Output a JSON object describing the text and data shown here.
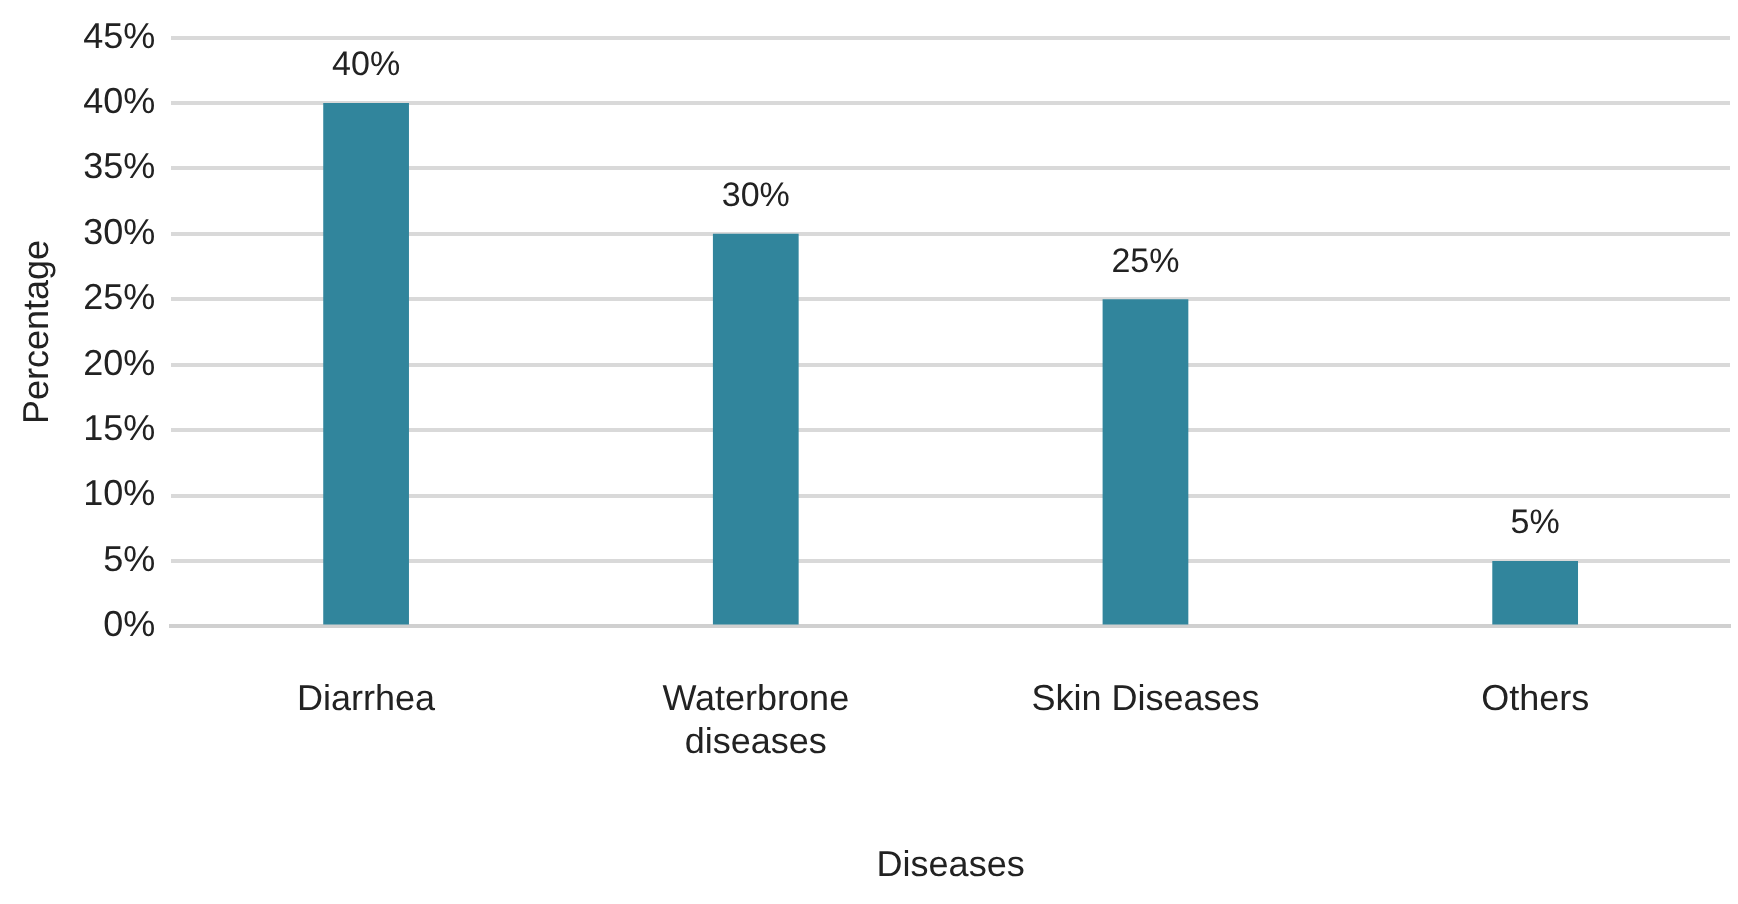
{
  "chart_data": {
    "type": "bar",
    "xlabel": "Diseases",
    "ylabel": "Percentage",
    "categories": [
      "Diarrhea",
      "Waterbrone diseases",
      "Skin Diseases",
      "Others"
    ],
    "values": [
      40,
      30,
      25,
      5
    ],
    "color": "#31859c",
    "value_labels": [
      "40%",
      "30%",
      "25%",
      "5%"
    ],
    "ylim": [
      0,
      45
    ],
    "yticks": [
      {
        "value": 0,
        "label": "0%"
      },
      {
        "value": 5,
        "label": "5%"
      },
      {
        "value": 10,
        "label": "10%"
      },
      {
        "value": 15,
        "label": "15%"
      },
      {
        "value": 20,
        "label": "20%"
      },
      {
        "value": 25,
        "label": "25%"
      },
      {
        "value": 30,
        "label": "30%"
      },
      {
        "value": 35,
        "label": "35%"
      },
      {
        "value": 40,
        "label": "40%"
      },
      {
        "value": 45,
        "label": "45%"
      }
    ],
    "grid": "y",
    "legend": false
  }
}
